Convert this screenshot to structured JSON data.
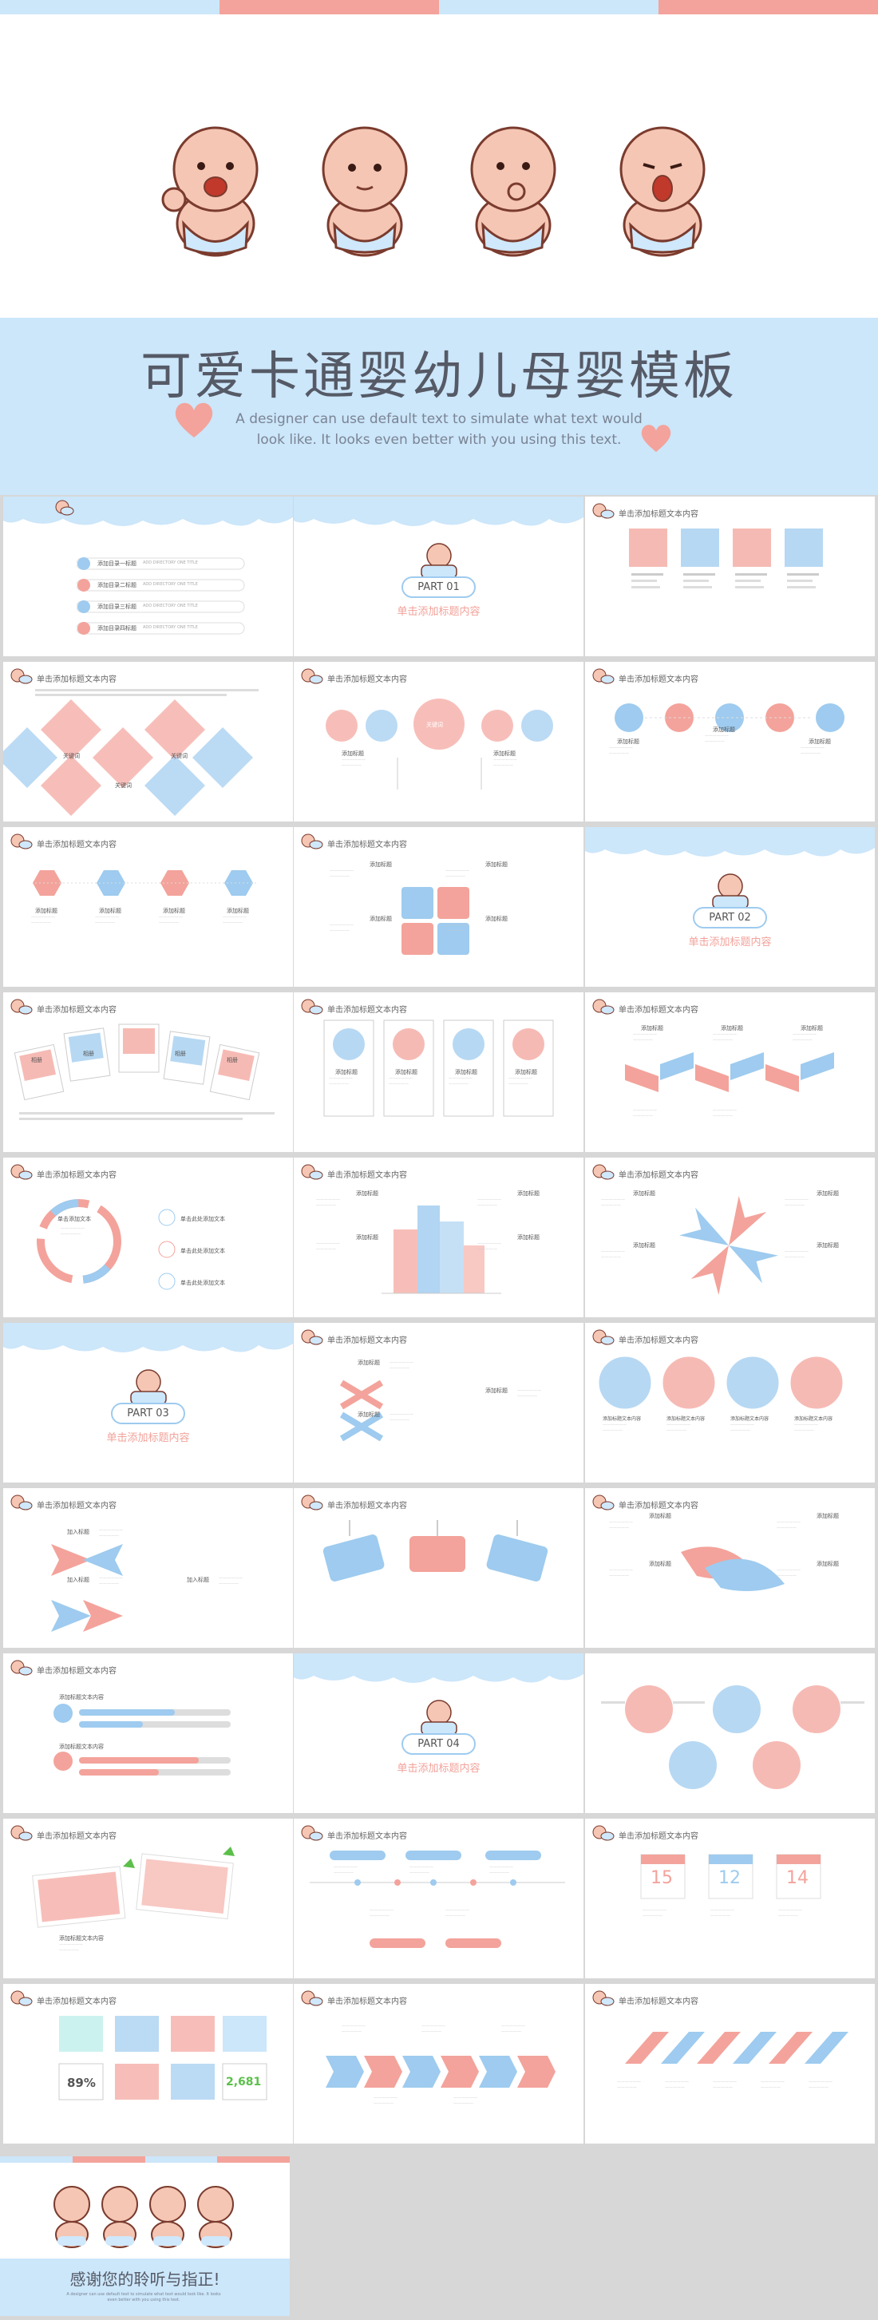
{
  "colors": {
    "pink": "#f3a39b",
    "blue": "#9ecbef",
    "light_blue": "#cce6fa",
    "text": "#555a66"
  },
  "cover": {
    "title": "可爱卡通婴幼儿母婴模板",
    "subtitle": "A designer can use default text to simulate what text would look like. It looks even better with you using this text."
  },
  "slides": [
    {
      "title": "",
      "kind": "toc",
      "items": [
        "添加目录一标题",
        "添加目录二标题",
        "添加目录三标题",
        "添加目录四标题"
      ],
      "item_en": "ADD DIRECTORY ONE TITLE"
    },
    {
      "title": "",
      "kind": "part",
      "part": "PART 01",
      "sub": "单击添加标题内容"
    },
    {
      "title": "单击添加标题文本内容",
      "kind": "squares"
    },
    {
      "title": "单击添加标题文本内容",
      "kind": "diamonds",
      "labels": [
        "关键词",
        "关键词",
        "关键词"
      ]
    },
    {
      "title": "单击添加标题文本内容",
      "kind": "circles",
      "center": "关键词",
      "labels": [
        "添加标题",
        "添加标题"
      ]
    },
    {
      "title": "单击添加标题文本内容",
      "kind": "icons",
      "labels": [
        "添加标题",
        "添加标题",
        "添加标题"
      ]
    },
    {
      "title": "单击添加标题文本内容",
      "kind": "hexes",
      "labels": [
        "添加标题",
        "添加标题",
        "添加标题",
        "添加标题"
      ]
    },
    {
      "title": "单击添加标题文本内容",
      "kind": "puzzle",
      "labels": [
        "添加标题",
        "添加标题",
        "添加标题",
        "添加标题"
      ]
    },
    {
      "title": "",
      "kind": "part",
      "part": "PART 02",
      "sub": "单击添加标题内容"
    },
    {
      "title": "单击添加标题文本内容",
      "kind": "photos",
      "labels": [
        "相册",
        "相册",
        "相册",
        "相册"
      ]
    },
    {
      "title": "单击添加标题文本内容",
      "kind": "cards",
      "labels": [
        "添加标题",
        "添加标题",
        "添加标题",
        "添加标题"
      ]
    },
    {
      "title": "单击添加标题文本内容",
      "kind": "ribbon",
      "labels": [
        "添加标题",
        "添加标题",
        "添加标题"
      ]
    },
    {
      "title": "单击添加标题文本内容",
      "kind": "ring",
      "center": "单击添加文本",
      "items": [
        "单击此处添加文本",
        "单击此处添加文本",
        "单击此处添加文本"
      ]
    },
    {
      "title": "单击添加标题文本内容",
      "kind": "buildings",
      "labels": [
        "添加标题",
        "添加标题",
        "添加标题",
        "添加标题"
      ]
    },
    {
      "title": "单击添加标题文本内容",
      "kind": "arrows",
      "labels": [
        "添加标题",
        "添加标题",
        "添加标题",
        "添加标题"
      ]
    },
    {
      "title": "",
      "kind": "part",
      "part": "PART 03",
      "sub": "单击添加标题内容"
    },
    {
      "title": "单击添加标题文本内容",
      "kind": "list3",
      "labels": [
        "添加标题",
        "添加标题",
        "添加标题"
      ]
    },
    {
      "title": "单击添加标题文本内容",
      "kind": "bubbles",
      "labels": [
        "添加标题文本内容",
        "添加标题文本内容",
        "添加标题文本内容",
        "添加标题文本内容"
      ]
    },
    {
      "title": "单击添加标题文本内容",
      "kind": "planes",
      "labels": [
        "加入标题",
        "加入标题",
        "加入标题"
      ]
    },
    {
      "title": "单击添加标题文本内容",
      "kind": "tags"
    },
    {
      "title": "单击添加标题文本内容",
      "kind": "hands",
      "labels": [
        "添加标题",
        "添加标题",
        "添加标题",
        "添加标题"
      ]
    },
    {
      "title": "单击添加标题文本内容",
      "kind": "bars",
      "labels": [
        "添加标题文本内容",
        "添加标题文本内容"
      ]
    },
    {
      "title": "",
      "kind": "part",
      "part": "PART 04",
      "sub": "单击添加标题内容"
    },
    {
      "title": "",
      "kind": "spheres"
    },
    {
      "title": "单击添加标题文本内容",
      "kind": "pins",
      "label": "添加标题文本内容"
    },
    {
      "title": "单击添加标题文本内容",
      "kind": "timeline"
    },
    {
      "title": "单击添加标题文本内容",
      "kind": "calendar",
      "days": [
        "15",
        "12",
        "14"
      ]
    },
    {
      "title": "单击添加标题文本内容",
      "kind": "stats",
      "stat1": "89%",
      "stat2": "2,681"
    },
    {
      "title": "单击添加标题文本内容",
      "kind": "arrowrow"
    },
    {
      "title": "单击添加标题文本内容",
      "kind": "slants"
    }
  ],
  "ending": {
    "title": "感谢您的聆听与指正!",
    "subtitle": "A designer can use default text to simulate what text would look like. It looks even better with you using this text."
  }
}
